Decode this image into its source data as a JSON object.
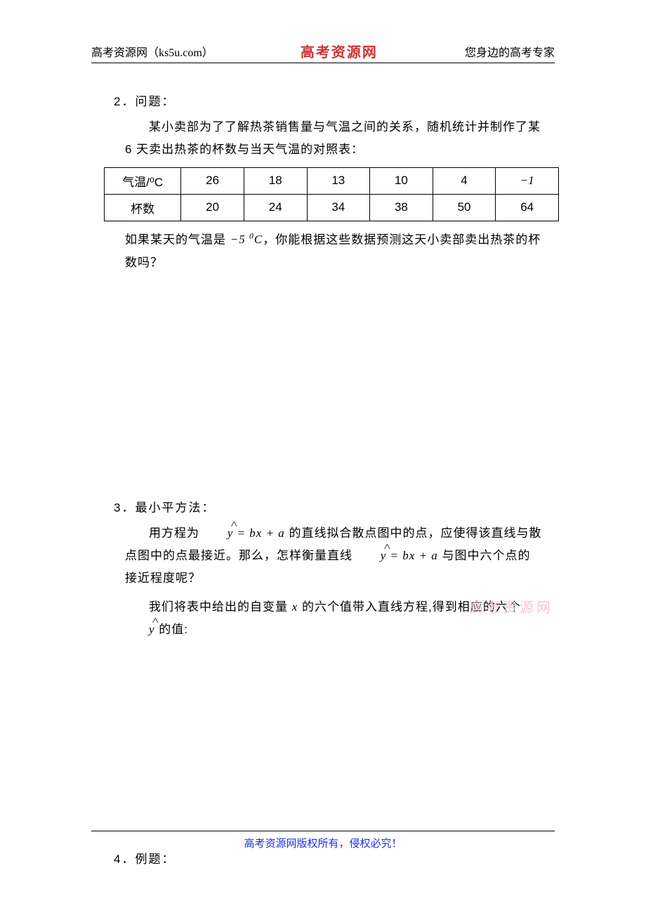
{
  "header": {
    "left": "高考资源网（ks5u.com）",
    "center": "高考资源网",
    "right": "您身边的高考专家"
  },
  "section2": {
    "title": "2．问题：",
    "p1": "某小卖部为了了解热茶销售量与气温之间的关系，随机统计并制作了某 6 天卖出热茶的杯数与当天气温的对照表：",
    "table": {
      "columns": [
        "气温/⁰C",
        "26",
        "18",
        "13",
        "10",
        "4",
        "−1"
      ],
      "rows": [
        [
          "杯数",
          "20",
          "24",
          "34",
          "38",
          "50",
          "64"
        ]
      ],
      "border_color": "#000000",
      "cell_font_size": 17
    },
    "p2_a": "如果某天的气温是 ",
    "p2_math": "−5 ⁰C",
    "p2_b": "，你能根据这些数据预测这天小卖部卖出热茶的杯数吗？"
  },
  "section3": {
    "title": "3．最小平方法：",
    "p1_a": "用方程为 ",
    "p1_eq": "ŷ = bx + a",
    "p1_b": " 的直线拟合散点图中的点，应使得该直线与散点图中的点最接近。那么，怎样衡量直线 ",
    "p1_eq2": "ŷ = bx + a",
    "p1_c": " 与图中六个点的接近程度呢？",
    "p2_a": "我们将表中给出的自变量 ",
    "p2_x": "x",
    "p2_b": " 的六个值带入直线方程,得到相应的六个 ",
    "p2_y": "ŷ",
    "p2_c": " 的值:"
  },
  "watermark": "高考资源网",
  "section4": {
    "title": "4．例题："
  },
  "footer": {
    "text": "高考资源网版权所有，侵权必究！"
  },
  "colors": {
    "text": "#000000",
    "brand_red": "#d03030",
    "footer_blue": "#2030e0",
    "watermark_pink": "#f4c6cf",
    "background": "#ffffff"
  }
}
